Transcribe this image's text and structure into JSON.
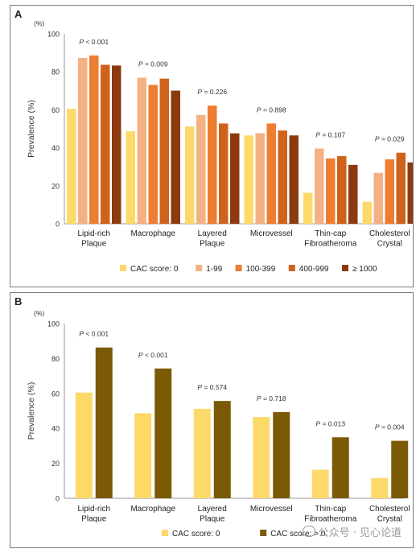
{
  "chart_data": [
    {
      "id": "A",
      "type": "bar",
      "panel_label": "A",
      "y_unit": "(%)",
      "ylabel": "Prevalence (%)",
      "ylim": [
        0,
        100
      ],
      "yticks": [
        0,
        20,
        40,
        60,
        80,
        100
      ],
      "categories": [
        [
          "Lipid-rich",
          "Plaque"
        ],
        [
          "Macrophage"
        ],
        [
          "Layered",
          "Plaque"
        ],
        [
          "Microvessel"
        ],
        [
          "Thin-cap",
          "Fibroatheroma"
        ],
        [
          "Cholesterol",
          "Crystal"
        ]
      ],
      "p_values": [
        "P < 0.001",
        "P = 0.009",
        "P = 0.226",
        "P = 0.898",
        "P = 0.107",
        "P = 0.029"
      ],
      "series": [
        {
          "name": "CAC score: 0",
          "color": "#fdd96a",
          "values": [
            60.5,
            48.7,
            51.2,
            46.5,
            16.3,
            11.6
          ]
        },
        {
          "name": "1-99",
          "color": "#f4b183",
          "values": [
            87.3,
            76.9,
            57.3,
            47.7,
            39.6,
            26.8
          ]
        },
        {
          "name": "100-399",
          "color": "#ed7d31",
          "values": [
            88.6,
            73.1,
            62.2,
            52.8,
            34.4,
            33.9
          ]
        },
        {
          "name": "400-999",
          "color": "#d0621c",
          "values": [
            83.7,
            76.4,
            52.8,
            49.1,
            35.6,
            37.4
          ]
        },
        {
          "name": "≥ 1000",
          "color": "#8c3a10",
          "values": [
            83.3,
            70.1,
            47.6,
            46.5,
            31.0,
            32.3
          ]
        }
      ],
      "grid": false,
      "legend_position": "bottom"
    },
    {
      "id": "B",
      "type": "bar",
      "panel_label": "B",
      "y_unit": "(%)",
      "ylabel": "Prevalence (%)",
      "ylim": [
        0,
        100
      ],
      "yticks": [
        0,
        20,
        40,
        60,
        80,
        100
      ],
      "categories": [
        [
          "Lipid-rich",
          "Plaque"
        ],
        [
          "Macrophage"
        ],
        [
          "Layered",
          "Plaque"
        ],
        [
          "Microvessel"
        ],
        [
          "Thin-cap",
          "Fibroatheroma"
        ],
        [
          "Cholesterol",
          "Crystal"
        ]
      ],
      "p_values": [
        "P < 0.001",
        "P < 0.001",
        "P = 0.574",
        "P = 0.718",
        "P = 0.013",
        "P = 0.004"
      ],
      "series": [
        {
          "name": "CAC score: 0",
          "color": "#fdd96a",
          "values": [
            60.5,
            48.7,
            51.2,
            46.5,
            16.3,
            11.6
          ]
        },
        {
          "name": "CAC score: > 0",
          "color": "#7b5a06",
          "values": [
            86.3,
            74.3,
            55.7,
            49.3,
            34.9,
            32.9
          ]
        }
      ],
      "grid": false,
      "legend_position": "bottom"
    }
  ],
  "watermark": "公众号 · 见心论道"
}
